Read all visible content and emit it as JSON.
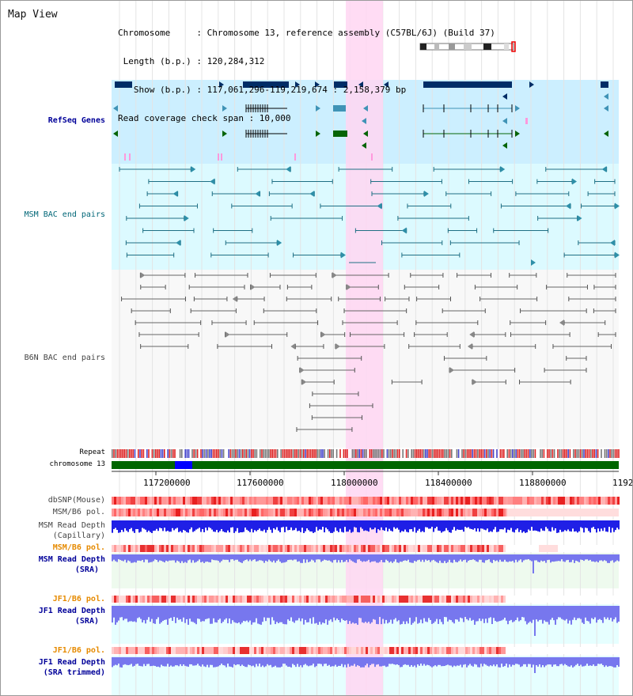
{
  "header": {
    "title": "Map View",
    "info_lines": [
      "Chromosome     : Chromosome 13, reference assembly (C57BL/6J) (Build 37)",
      " Length (b.p.) : 120,284,312",
      "   Show (b.p.) : 117,061,296-119,219,674 : 2,158,379 bp",
      "Read coverage check span : 10,000"
    ]
  },
  "tracks": {
    "refseq": "RefSeq Genes",
    "msm_bac": "MSM BAC end pairs",
    "b6n_bac": "B6N BAC end pairs",
    "repeat": "Repeat",
    "chromosome": "chromosome 13",
    "dbsnp": "dbSNP(Mouse)",
    "msm_b6_pol_1": "MSM/B6 pol.",
    "msm_read_depth_cap_1": "MSM Read Depth",
    "msm_read_depth_cap_2": "(Capillary)",
    "msm_b6_pol_2": "MSM/B6 pol.",
    "msm_read_depth_sra_1": "MSM Read Depth",
    "msm_read_depth_sra_2": "(SRA)",
    "jf1_b6_pol_1": "JF1/B6 pol.",
    "jf1_read_depth_sra_1": "JF1 Read Depth",
    "jf1_read_depth_sra_2": "(SRA)",
    "jf1_b6_pol_2": "JF1/B6 pol.",
    "jf1_read_depth_trim_1": "JF1 Read Depth",
    "jf1_read_depth_trim_2": "(SRA trimmed)"
  },
  "axis": {
    "ticks": [
      "117200000",
      "117600000",
      "118000000",
      "118400000",
      "118800000",
      "1192"
    ]
  },
  "colors": {
    "refseq_bg": "#ccefff",
    "msm_bac_bg": "#dcfaff",
    "highlight": "#ffd6f2",
    "gene_dark": "#002d66",
    "gene_teal": "#3f93b6",
    "gene_green": "#066406",
    "msm_bac_line": "#1f6f84",
    "b6n_line": "#666666",
    "chrom_green": "#006600",
    "depth_blue": "#1f1fe6",
    "label_blue": "#000099",
    "label_orange": "#e68a00",
    "label_teal": "#006677"
  }
}
